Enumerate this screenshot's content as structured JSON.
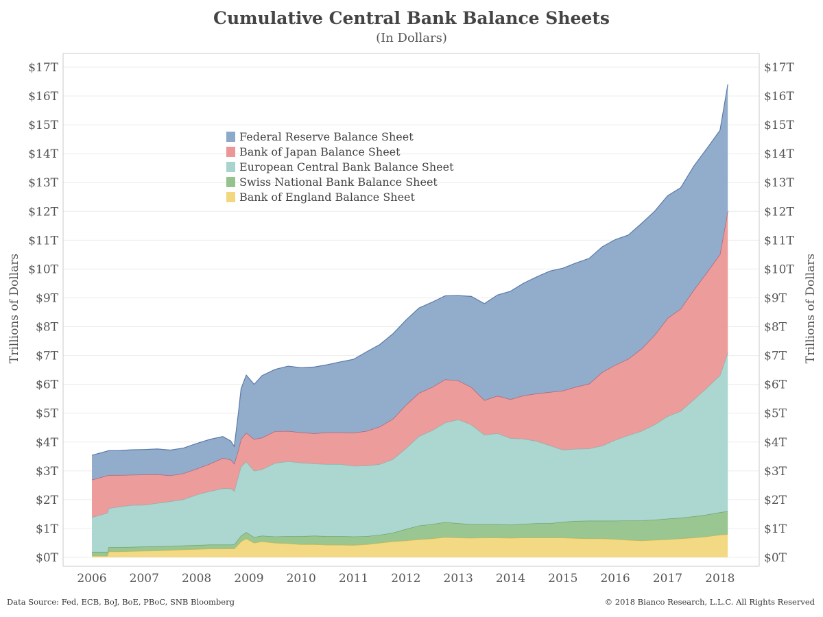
{
  "chart_data": {
    "type": "area",
    "stacked": true,
    "title": "Cumulative Central Bank Balance Sheets",
    "subtitle": "(In Dollars)",
    "ylabel_left": "Trillions of Dollars",
    "ylabel_right": "Trillions of Dollars",
    "ylim": [
      0,
      17
    ],
    "y_ticks": [
      0,
      1,
      2,
      3,
      4,
      5,
      6,
      7,
      8,
      9,
      10,
      11,
      12,
      13,
      14,
      15,
      16,
      17
    ],
    "y_tick_labels": [
      "$0T",
      "$1T",
      "$2T",
      "$3T",
      "$4T",
      "$5T",
      "$6T",
      "$7T",
      "$8T",
      "$9T",
      "$10T",
      "$11T",
      "$12T",
      "$13T",
      "$14T",
      "$15T",
      "$16T",
      "$17T"
    ],
    "x_ticks": [
      2006,
      2007,
      2008,
      2009,
      2010,
      2011,
      2012,
      2013,
      2014,
      2015,
      2016,
      2017,
      2018
    ],
    "x_tick_labels": [
      "2006",
      "2007",
      "2008",
      "2009",
      "2010",
      "2011",
      "2012",
      "2013",
      "2014",
      "2015",
      "2016",
      "2017",
      "2018"
    ],
    "xlim": [
      2005.45,
      2018.75
    ],
    "grid": true,
    "legend_placement": "upper-left",
    "x": [
      2006.0,
      2006.3,
      2006.32,
      2006.5,
      2006.75,
      2007.0,
      2007.25,
      2007.5,
      2007.75,
      2008.0,
      2008.25,
      2008.5,
      2008.65,
      2008.72,
      2008.8,
      2008.85,
      2008.95,
      2009.1,
      2009.25,
      2009.5,
      2009.75,
      2010.0,
      2010.25,
      2010.5,
      2010.75,
      2011.0,
      2011.25,
      2011.5,
      2011.75,
      2012.0,
      2012.25,
      2012.5,
      2012.75,
      2013.0,
      2013.25,
      2013.5,
      2013.75,
      2014.0,
      2014.25,
      2014.5,
      2014.75,
      2015.0,
      2015.25,
      2015.5,
      2015.75,
      2016.0,
      2016.25,
      2016.5,
      2016.75,
      2017.0,
      2017.25,
      2017.5,
      2017.75,
      2018.0,
      2018.15
    ],
    "series": [
      {
        "name": "Bank of England Balance Sheet",
        "color": "#f3d77e",
        "values": [
          0.05,
          0.05,
          0.2,
          0.2,
          0.21,
          0.22,
          0.23,
          0.25,
          0.27,
          0.28,
          0.3,
          0.3,
          0.3,
          0.3,
          0.45,
          0.55,
          0.65,
          0.5,
          0.55,
          0.5,
          0.48,
          0.45,
          0.45,
          0.43,
          0.43,
          0.42,
          0.45,
          0.5,
          0.55,
          0.58,
          0.62,
          0.65,
          0.7,
          0.68,
          0.67,
          0.68,
          0.68,
          0.67,
          0.68,
          0.68,
          0.68,
          0.68,
          0.66,
          0.65,
          0.65,
          0.63,
          0.6,
          0.58,
          0.6,
          0.62,
          0.65,
          0.68,
          0.72,
          0.78,
          0.8
        ]
      },
      {
        "name": "Swiss National Bank Balance Sheet",
        "color": "#94c38b",
        "values": [
          0.14,
          0.14,
          0.15,
          0.15,
          0.15,
          0.15,
          0.15,
          0.14,
          0.14,
          0.14,
          0.14,
          0.14,
          0.14,
          0.15,
          0.18,
          0.2,
          0.22,
          0.2,
          0.2,
          0.22,
          0.25,
          0.28,
          0.3,
          0.3,
          0.3,
          0.3,
          0.28,
          0.28,
          0.3,
          0.4,
          0.48,
          0.5,
          0.52,
          0.5,
          0.48,
          0.47,
          0.47,
          0.46,
          0.48,
          0.5,
          0.5,
          0.55,
          0.6,
          0.62,
          0.62,
          0.64,
          0.68,
          0.7,
          0.7,
          0.72,
          0.72,
          0.74,
          0.76,
          0.78,
          0.8
        ]
      },
      {
        "name": "European Central Bank Balance Sheet",
        "color": "#a8d4ce",
        "values": [
          1.2,
          1.35,
          1.35,
          1.4,
          1.45,
          1.45,
          1.5,
          1.55,
          1.6,
          1.75,
          1.85,
          1.95,
          1.95,
          1.85,
          2.2,
          2.4,
          2.45,
          2.3,
          2.3,
          2.55,
          2.6,
          2.55,
          2.5,
          2.5,
          2.5,
          2.45,
          2.45,
          2.45,
          2.55,
          2.8,
          3.1,
          3.25,
          3.45,
          3.6,
          3.45,
          3.1,
          3.15,
          3.0,
          2.95,
          2.85,
          2.7,
          2.5,
          2.5,
          2.5,
          2.6,
          2.8,
          2.95,
          3.1,
          3.3,
          3.55,
          3.7,
          4.05,
          4.4,
          4.75,
          5.5
        ]
      },
      {
        "name": "Bank of Japan Balance Sheet",
        "color": "#ec9797",
        "values": [
          1.3,
          1.3,
          1.15,
          1.1,
          1.05,
          1.05,
          1.0,
          0.9,
          0.9,
          0.9,
          0.95,
          1.05,
          1.0,
          0.95,
          0.9,
          0.95,
          1.0,
          1.1,
          1.1,
          1.1,
          1.05,
          1.05,
          1.05,
          1.1,
          1.1,
          1.15,
          1.2,
          1.3,
          1.4,
          1.5,
          1.5,
          1.5,
          1.5,
          1.35,
          1.3,
          1.2,
          1.3,
          1.35,
          1.5,
          1.65,
          1.85,
          2.05,
          2.15,
          2.25,
          2.55,
          2.6,
          2.65,
          2.85,
          3.1,
          3.4,
          3.55,
          3.8,
          4.0,
          4.2,
          4.9
        ]
      },
      {
        "name": "Federal Reserve Balance Sheet",
        "color": "#8ca9c9",
        "values": [
          0.85,
          0.85,
          0.85,
          0.85,
          0.87,
          0.87,
          0.88,
          0.88,
          0.88,
          0.88,
          0.85,
          0.75,
          0.65,
          0.6,
          1.3,
          1.75,
          2.0,
          1.9,
          2.15,
          2.15,
          2.25,
          2.25,
          2.3,
          2.35,
          2.45,
          2.55,
          2.75,
          2.85,
          2.95,
          2.95,
          2.95,
          2.95,
          2.9,
          2.95,
          3.15,
          3.35,
          3.5,
          3.75,
          3.9,
          4.05,
          4.2,
          4.25,
          4.3,
          4.35,
          4.35,
          4.35,
          4.3,
          4.35,
          4.3,
          4.25,
          4.2,
          4.3,
          4.3,
          4.3,
          4.4
        ]
      }
    ]
  },
  "footer": {
    "source": "Data Source: Fed, ECB, BoJ, BoE, PBoC, SNB Bloomberg",
    "copyright": "© 2018 Bianco Research, L.L.C. All Rights Reserved"
  }
}
